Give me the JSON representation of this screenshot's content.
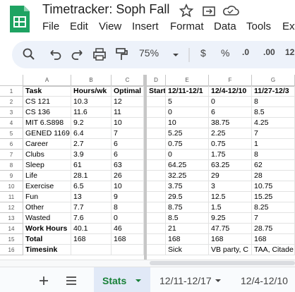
{
  "header": {
    "title": "Timetracker: Soph Fall",
    "menu": [
      "File",
      "Edit",
      "View",
      "Insert",
      "Format",
      "Data",
      "Tools",
      "Ext"
    ]
  },
  "toolbar": {
    "zoom": "75%",
    "items": [
      "$",
      "%",
      ".0",
      ".00",
      "12"
    ]
  },
  "table": {
    "columns": [
      "A",
      "B",
      "C",
      "D",
      "E",
      "F",
      "G"
    ],
    "row_numbers": [
      1,
      2,
      3,
      4,
      5,
      6,
      7,
      8,
      9,
      10,
      11,
      12,
      13,
      14,
      15,
      16
    ],
    "rows": [
      [
        "Task",
        "Hours/wk",
        "Optimal",
        "Start",
        "12/11-12/1",
        "12/4-12/10",
        "11/27-12/3"
      ],
      [
        "CS 121",
        10.3,
        12,
        null,
        5,
        0,
        8
      ],
      [
        "CS 136",
        11.6,
        11,
        null,
        0,
        6,
        8.5
      ],
      [
        "MIT 6.S898",
        9.2,
        10,
        null,
        10,
        38.75,
        4.25
      ],
      [
        "GENED 1169",
        6.4,
        7,
        null,
        5.25,
        2.25,
        7
      ],
      [
        "Career",
        2.7,
        6,
        null,
        0.75,
        0.75,
        1
      ],
      [
        "Clubs",
        3.9,
        6,
        null,
        0,
        1.75,
        8
      ],
      [
        "Sleep",
        61,
        63,
        null,
        64.25,
        63.25,
        62
      ],
      [
        "Life",
        28.1,
        26,
        null,
        32.25,
        29,
        28
      ],
      [
        "Exercise",
        6.5,
        10,
        null,
        3.75,
        3,
        10.75
      ],
      [
        "Fun",
        13,
        9,
        null,
        29.5,
        12.5,
        15.25
      ],
      [
        "Other",
        7.7,
        8,
        null,
        8.75,
        1.5,
        8.25
      ],
      [
        "Wasted",
        7.6,
        0,
        null,
        8.5,
        9.25,
        7
      ],
      [
        "Work Hours",
        40.1,
        46,
        null,
        21,
        47.75,
        28.75
      ],
      [
        "Total",
        168,
        168,
        null,
        168,
        168,
        168
      ],
      [
        "Timesink",
        null,
        null,
        null,
        "Sick",
        "VB party, C",
        "TAA, Citade"
      ]
    ]
  },
  "sheet_tabs": [
    "Stats",
    "12/11-12/17",
    "12/4-12/10"
  ]
}
